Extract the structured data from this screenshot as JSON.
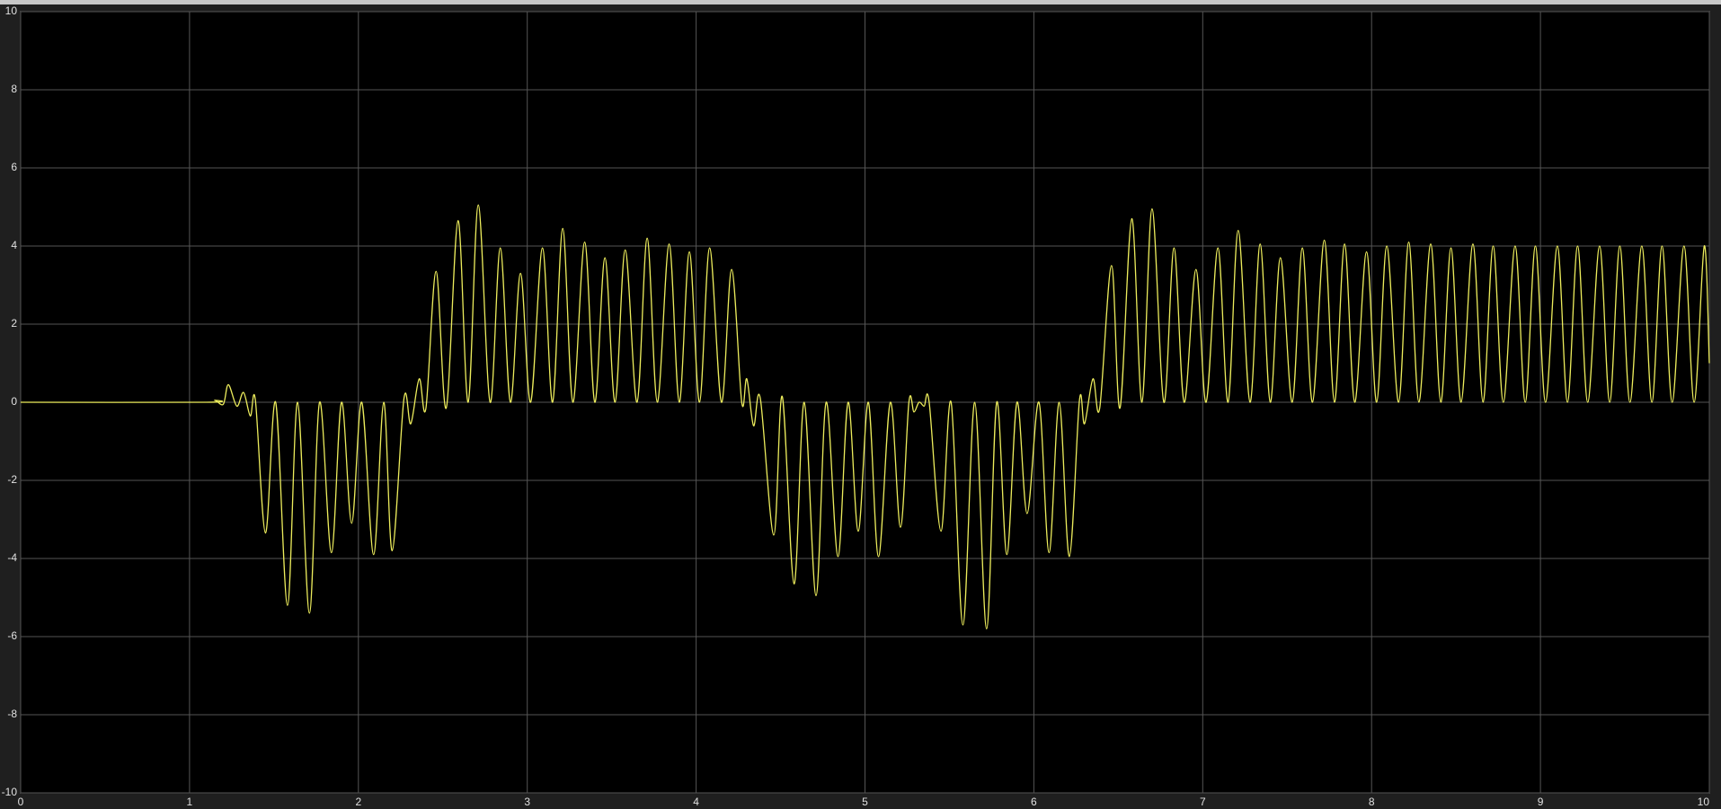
{
  "chart_data": {
    "type": "line",
    "xlim": [
      0,
      10
    ],
    "ylim": [
      -10,
      10
    ],
    "xticks": [
      0,
      1,
      2,
      3,
      4,
      5,
      6,
      7,
      8,
      9,
      10
    ],
    "yticks": [
      -10,
      -8,
      -6,
      -4,
      -2,
      0,
      2,
      4,
      6,
      8,
      10
    ],
    "grid": true,
    "series": [
      {
        "color": "#ecec5c",
        "x": [
          0,
          1.1,
          1.15,
          1.2,
          1.23,
          1.28,
          1.32,
          1.36,
          1.39,
          1.45,
          1.51,
          1.58,
          1.64,
          1.71,
          1.77,
          1.84,
          1.9,
          1.96,
          2.02,
          2.09,
          2.15,
          2.2,
          2.27,
          2.31,
          2.36,
          2.4,
          2.46,
          2.52,
          2.59,
          2.65,
          2.71,
          2.78,
          2.84,
          2.9,
          2.96,
          3.02,
          3.09,
          3.15,
          3.21,
          3.27,
          3.34,
          3.4,
          3.46,
          3.52,
          3.58,
          3.65,
          3.71,
          3.77,
          3.84,
          3.9,
          3.96,
          4.02,
          4.08,
          4.15,
          4.21,
          4.27,
          4.3,
          4.34,
          4.38,
          4.46,
          4.51,
          4.58,
          4.64,
          4.71,
          4.77,
          4.84,
          4.9,
          4.96,
          5.02,
          5.08,
          5.15,
          5.21,
          5.26,
          5.29,
          5.32,
          5.35,
          5.38,
          5.45,
          5.51,
          5.58,
          5.65,
          5.72,
          5.78,
          5.84,
          5.9,
          5.96,
          6.03,
          6.09,
          6.15,
          6.21,
          6.27,
          6.3,
          6.35,
          6.39,
          6.46,
          6.51,
          6.58,
          6.64,
          6.7,
          6.77,
          6.83,
          6.89,
          6.96,
          7.02,
          7.09,
          7.15,
          7.21,
          7.28,
          7.34,
          7.4,
          7.46,
          7.53,
          7.59,
          7.65,
          7.72,
          7.78,
          7.84,
          7.9,
          7.97,
          8.03,
          8.09,
          8.16,
          8.22,
          8.28,
          8.35,
          8.41,
          8.47,
          8.53,
          8.6,
          8.66,
          8.72,
          8.78,
          8.85,
          8.91,
          8.97,
          9.03,
          9.1,
          9.16,
          9.22,
          9.28,
          9.35,
          9.41,
          9.47,
          9.53,
          9.6,
          9.66,
          9.72,
          9.78,
          9.85,
          9.91,
          9.97,
          10
        ],
        "values": [
          0,
          0,
          0.05,
          -0.05,
          0.45,
          -0.1,
          0.25,
          -0.35,
          0.05,
          -3.35,
          0,
          -5.2,
          0,
          -5.4,
          0,
          -3.85,
          0,
          -3.1,
          0,
          -3.9,
          0,
          -3.8,
          0.1,
          -0.55,
          0.6,
          -0.15,
          3.35,
          -0.15,
          4.65,
          0,
          5.05,
          0,
          3.95,
          0,
          3.3,
          0,
          3.95,
          0,
          4.45,
          0,
          4.1,
          0,
          3.7,
          0,
          3.9,
          0,
          4.2,
          0,
          4.05,
          0,
          3.85,
          0,
          3.95,
          0,
          3.4,
          0,
          0.6,
          -0.6,
          0.1,
          -3.4,
          0.15,
          -4.65,
          0,
          -4.95,
          0,
          -3.95,
          0,
          -3.3,
          0,
          -3.95,
          0,
          -3.2,
          0,
          -0.25,
          0,
          -0.1,
          0,
          -3.3,
          0,
          -5.7,
          0,
          -5.8,
          0,
          -3.9,
          0,
          -2.85,
          0,
          -3.85,
          0,
          -3.95,
          0.05,
          -0.55,
          0.6,
          -0.15,
          3.5,
          -0.15,
          4.7,
          0,
          4.95,
          0,
          3.95,
          0,
          3.4,
          0,
          3.95,
          0,
          4.4,
          0,
          4.05,
          0,
          3.7,
          0,
          3.95,
          0,
          4.15,
          0,
          4.05,
          0,
          3.85,
          0,
          4.0,
          0,
          4.1,
          0,
          4.05,
          0,
          3.95,
          0,
          4.05,
          0,
          4.0,
          0,
          4.0,
          0,
          4.0,
          0,
          4.0,
          0,
          4.0,
          0,
          4.0,
          0,
          4.0,
          0,
          4.0,
          0,
          4.0,
          0,
          4.0,
          0,
          4.0,
          1.0
        ]
      }
    ]
  }
}
